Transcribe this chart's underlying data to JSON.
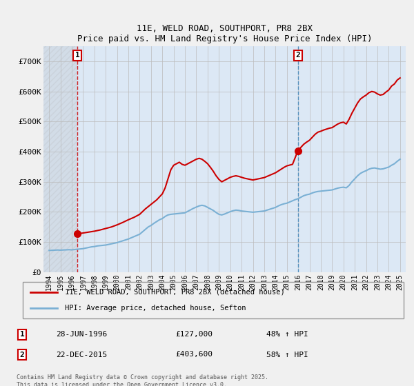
{
  "title": "11E, WELD ROAD, SOUTHPORT, PR8 2BX",
  "subtitle": "Price paid vs. HM Land Registry's House Price Index (HPI)",
  "background_color": "#dce8f5",
  "grid_color": "#bbbbbb",
  "hpi_line_color": "#7ab0d4",
  "price_line_color": "#cc0000",
  "transaction1": {
    "date": 1996.49,
    "price": 127000,
    "label": "1",
    "date_str": "28-JUN-1996",
    "pct": "48% ↑ HPI"
  },
  "transaction2": {
    "date": 2015.98,
    "price": 403600,
    "label": "2",
    "date_str": "22-DEC-2015",
    "pct": "58% ↑ HPI"
  },
  "legend_label_red": "11E, WELD ROAD, SOUTHPORT, PR8 2BX (detached house)",
  "legend_label_blue": "HPI: Average price, detached house, Sefton",
  "footer": "Contains HM Land Registry data © Crown copyright and database right 2025.\nThis data is licensed under the Open Government Licence v3.0.",
  "ylim": [
    0,
    750000
  ],
  "xlim": [
    1993.5,
    2025.5
  ],
  "yticks": [
    0,
    100000,
    200000,
    300000,
    400000,
    500000,
    600000,
    700000
  ],
  "ytick_labels": [
    "£0",
    "£100K",
    "£200K",
    "£300K",
    "£400K",
    "£500K",
    "£600K",
    "£700K"
  ],
  "xticks": [
    1994,
    1995,
    1996,
    1997,
    1998,
    1999,
    2000,
    2001,
    2002,
    2003,
    2004,
    2005,
    2006,
    2007,
    2008,
    2009,
    2010,
    2011,
    2012,
    2013,
    2014,
    2015,
    2016,
    2017,
    2018,
    2019,
    2020,
    2021,
    2022,
    2023,
    2024,
    2025
  ],
  "hpi_data": [
    [
      1994.0,
      72000
    ],
    [
      1994.25,
      72500
    ],
    [
      1994.5,
      73000
    ],
    [
      1994.75,
      73500
    ],
    [
      1995.0,
      73000
    ],
    [
      1995.25,
      73500
    ],
    [
      1995.5,
      74000
    ],
    [
      1995.75,
      74500
    ],
    [
      1996.0,
      74000
    ],
    [
      1996.25,
      75000
    ],
    [
      1996.5,
      76000
    ],
    [
      1996.75,
      77000
    ],
    [
      1997.0,
      78000
    ],
    [
      1997.25,
      80000
    ],
    [
      1997.5,
      82000
    ],
    [
      1997.75,
      84000
    ],
    [
      1998.0,
      85000
    ],
    [
      1998.25,
      87000
    ],
    [
      1998.5,
      88000
    ],
    [
      1998.75,
      89000
    ],
    [
      1999.0,
      90000
    ],
    [
      1999.25,
      92000
    ],
    [
      1999.5,
      94000
    ],
    [
      1999.75,
      96000
    ],
    [
      2000.0,
      98000
    ],
    [
      2000.25,
      101000
    ],
    [
      2000.5,
      104000
    ],
    [
      2000.75,
      107000
    ],
    [
      2001.0,
      110000
    ],
    [
      2001.25,
      114000
    ],
    [
      2001.5,
      118000
    ],
    [
      2001.75,
      122000
    ],
    [
      2002.0,
      126000
    ],
    [
      2002.25,
      134000
    ],
    [
      2002.5,
      142000
    ],
    [
      2002.75,
      150000
    ],
    [
      2003.0,
      155000
    ],
    [
      2003.25,
      162000
    ],
    [
      2003.5,
      168000
    ],
    [
      2003.75,
      174000
    ],
    [
      2004.0,
      178000
    ],
    [
      2004.25,
      185000
    ],
    [
      2004.5,
      190000
    ],
    [
      2004.75,
      192000
    ],
    [
      2005.0,
      193000
    ],
    [
      2005.25,
      194000
    ],
    [
      2005.5,
      195000
    ],
    [
      2005.75,
      196000
    ],
    [
      2006.0,
      197000
    ],
    [
      2006.25,
      202000
    ],
    [
      2006.5,
      207000
    ],
    [
      2006.75,
      212000
    ],
    [
      2007.0,
      216000
    ],
    [
      2007.25,
      220000
    ],
    [
      2007.5,
      222000
    ],
    [
      2007.75,
      220000
    ],
    [
      2008.0,
      215000
    ],
    [
      2008.25,
      210000
    ],
    [
      2008.5,
      205000
    ],
    [
      2008.75,
      198000
    ],
    [
      2009.0,
      192000
    ],
    [
      2009.25,
      190000
    ],
    [
      2009.5,
      193000
    ],
    [
      2009.75,
      197000
    ],
    [
      2010.0,
      201000
    ],
    [
      2010.25,
      204000
    ],
    [
      2010.5,
      206000
    ],
    [
      2010.75,
      205000
    ],
    [
      2011.0,
      203000
    ],
    [
      2011.25,
      202000
    ],
    [
      2011.5,
      201000
    ],
    [
      2011.75,
      200000
    ],
    [
      2012.0,
      199000
    ],
    [
      2012.25,
      200000
    ],
    [
      2012.5,
      201000
    ],
    [
      2012.75,
      202000
    ],
    [
      2013.0,
      203000
    ],
    [
      2013.25,
      206000
    ],
    [
      2013.5,
      209000
    ],
    [
      2013.75,
      212000
    ],
    [
      2014.0,
      215000
    ],
    [
      2014.25,
      220000
    ],
    [
      2014.5,
      224000
    ],
    [
      2014.75,
      227000
    ],
    [
      2015.0,
      229000
    ],
    [
      2015.25,
      233000
    ],
    [
      2015.5,
      237000
    ],
    [
      2015.75,
      241000
    ],
    [
      2016.0,
      244000
    ],
    [
      2016.25,
      249000
    ],
    [
      2016.5,
      254000
    ],
    [
      2016.75,
      257000
    ],
    [
      2017.0,
      259000
    ],
    [
      2017.25,
      263000
    ],
    [
      2017.5,
      266000
    ],
    [
      2017.75,
      268000
    ],
    [
      2018.0,
      269000
    ],
    [
      2018.25,
      270000
    ],
    [
      2018.5,
      271000
    ],
    [
      2018.75,
      272000
    ],
    [
      2019.0,
      273000
    ],
    [
      2019.25,
      276000
    ],
    [
      2019.5,
      279000
    ],
    [
      2019.75,
      281000
    ],
    [
      2020.0,
      282000
    ],
    [
      2020.25,
      280000
    ],
    [
      2020.5,
      288000
    ],
    [
      2020.75,
      300000
    ],
    [
      2021.0,
      310000
    ],
    [
      2021.25,
      320000
    ],
    [
      2021.5,
      328000
    ],
    [
      2021.75,
      333000
    ],
    [
      2022.0,
      337000
    ],
    [
      2022.25,
      342000
    ],
    [
      2022.5,
      345000
    ],
    [
      2022.75,
      346000
    ],
    [
      2023.0,
      344000
    ],
    [
      2023.25,
      342000
    ],
    [
      2023.5,
      343000
    ],
    [
      2023.75,
      346000
    ],
    [
      2024.0,
      349000
    ],
    [
      2024.25,
      355000
    ],
    [
      2024.5,
      360000
    ],
    [
      2024.75,
      368000
    ],
    [
      2025.0,
      375000
    ]
  ],
  "price_data": [
    [
      1996.49,
      127000
    ],
    [
      1997.0,
      130000
    ],
    [
      1997.5,
      133000
    ],
    [
      1998.0,
      136000
    ],
    [
      1998.5,
      140000
    ],
    [
      1999.0,
      145000
    ],
    [
      1999.5,
      150000
    ],
    [
      2000.0,
      157000
    ],
    [
      2000.5,
      165000
    ],
    [
      2001.0,
      174000
    ],
    [
      2001.5,
      182000
    ],
    [
      2002.0,
      192000
    ],
    [
      2002.5,
      210000
    ],
    [
      2003.0,
      225000
    ],
    [
      2003.5,
      240000
    ],
    [
      2004.0,
      260000
    ],
    [
      2004.25,
      280000
    ],
    [
      2004.5,
      310000
    ],
    [
      2004.75,
      340000
    ],
    [
      2005.0,
      355000
    ],
    [
      2005.25,
      360000
    ],
    [
      2005.5,
      365000
    ],
    [
      2005.75,
      358000
    ],
    [
      2006.0,
      355000
    ],
    [
      2006.25,
      360000
    ],
    [
      2006.5,
      365000
    ],
    [
      2006.75,
      370000
    ],
    [
      2007.0,
      375000
    ],
    [
      2007.25,
      378000
    ],
    [
      2007.5,
      375000
    ],
    [
      2007.75,
      368000
    ],
    [
      2008.0,
      360000
    ],
    [
      2008.25,
      348000
    ],
    [
      2008.5,
      335000
    ],
    [
      2008.75,
      320000
    ],
    [
      2009.0,
      308000
    ],
    [
      2009.25,
      300000
    ],
    [
      2009.5,
      305000
    ],
    [
      2009.75,
      310000
    ],
    [
      2010.0,
      315000
    ],
    [
      2010.25,
      318000
    ],
    [
      2010.5,
      320000
    ],
    [
      2010.75,
      318000
    ],
    [
      2011.0,
      315000
    ],
    [
      2011.25,
      312000
    ],
    [
      2011.5,
      310000
    ],
    [
      2011.75,
      308000
    ],
    [
      2012.0,
      306000
    ],
    [
      2012.25,
      308000
    ],
    [
      2012.5,
      310000
    ],
    [
      2012.75,
      312000
    ],
    [
      2013.0,
      314000
    ],
    [
      2013.25,
      318000
    ],
    [
      2013.5,
      322000
    ],
    [
      2013.75,
      326000
    ],
    [
      2014.0,
      330000
    ],
    [
      2014.25,
      336000
    ],
    [
      2014.5,
      342000
    ],
    [
      2014.75,
      348000
    ],
    [
      2015.0,
      353000
    ],
    [
      2015.5,
      358000
    ],
    [
      2015.98,
      403600
    ],
    [
      2016.0,
      406000
    ],
    [
      2016.25,
      415000
    ],
    [
      2016.5,
      425000
    ],
    [
      2016.75,
      432000
    ],
    [
      2017.0,
      438000
    ],
    [
      2017.25,
      448000
    ],
    [
      2017.5,
      458000
    ],
    [
      2017.75,
      465000
    ],
    [
      2018.0,
      468000
    ],
    [
      2018.25,
      472000
    ],
    [
      2018.5,
      475000
    ],
    [
      2018.75,
      478000
    ],
    [
      2019.0,
      480000
    ],
    [
      2019.25,
      486000
    ],
    [
      2019.5,
      492000
    ],
    [
      2019.75,
      496000
    ],
    [
      2020.0,
      498000
    ],
    [
      2020.25,
      492000
    ],
    [
      2020.5,
      508000
    ],
    [
      2020.75,
      528000
    ],
    [
      2021.0,
      545000
    ],
    [
      2021.25,
      562000
    ],
    [
      2021.5,
      575000
    ],
    [
      2021.75,
      582000
    ],
    [
      2022.0,
      588000
    ],
    [
      2022.25,
      596000
    ],
    [
      2022.5,
      600000
    ],
    [
      2022.75,
      598000
    ],
    [
      2023.0,
      592000
    ],
    [
      2023.25,
      588000
    ],
    [
      2023.5,
      590000
    ],
    [
      2023.75,
      598000
    ],
    [
      2024.0,
      605000
    ],
    [
      2024.25,
      618000
    ],
    [
      2024.5,
      625000
    ],
    [
      2024.75,
      638000
    ],
    [
      2025.0,
      645000
    ]
  ]
}
